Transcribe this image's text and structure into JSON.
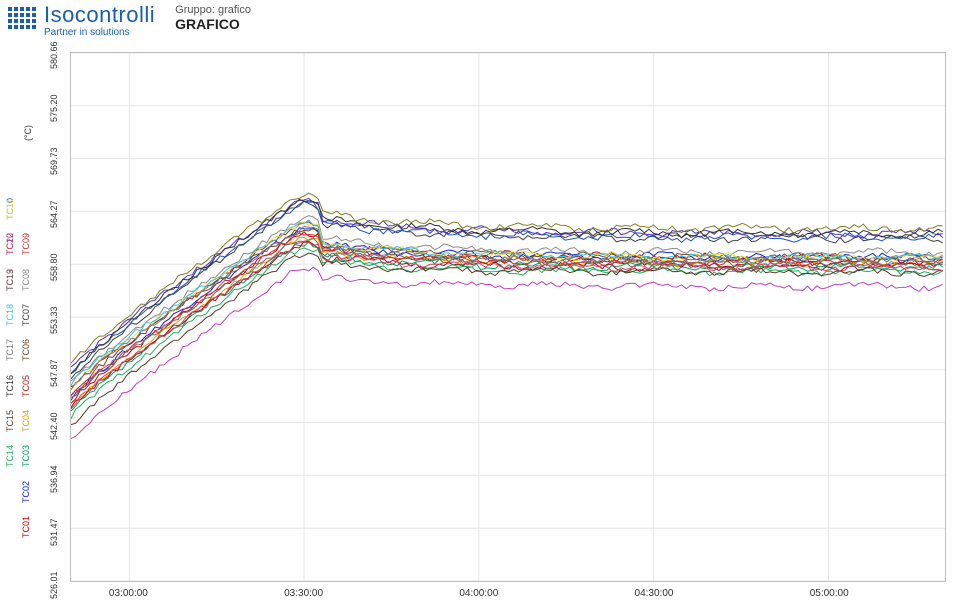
{
  "header": {
    "logo_main": "Isocontrolli",
    "logo_tagline": "Partner in solutions",
    "logo_color": "#1b5fa8",
    "group_label": "Gruppo: grafico",
    "chart_title": "GRAFICO"
  },
  "chart": {
    "type": "line",
    "background_color": "#ffffff",
    "border_color": "#bfbfbf",
    "grid_color": "#e6e6e6",
    "y_axis_unit": "(°C)",
    "y_axis_unit_color": "#333333",
    "ylim": [
      526.01,
      580.66
    ],
    "yticks": [
      526.01,
      531.47,
      536.94,
      542.4,
      547.87,
      553.33,
      558.8,
      564.27,
      569.73,
      575.2,
      580.66
    ],
    "ytick_fontsize": 9,
    "xlim_minutes": [
      170,
      320
    ],
    "xticks": [
      {
        "minutes": 180,
        "label": "03:00:00"
      },
      {
        "minutes": 210,
        "label": "03:30:00"
      },
      {
        "minutes": 240,
        "label": "04:00:00"
      },
      {
        "minutes": 270,
        "label": "04:30:00"
      },
      {
        "minutes": 300,
        "label": "05:00:00"
      }
    ],
    "xtick_fontsize": 10,
    "line_width": 1,
    "series": [
      {
        "id": "TC01",
        "color": "#cc0000",
        "start": 544.5,
        "peak": 561.5,
        "settle": 559.0,
        "legend_row": 9
      },
      {
        "id": "TC02",
        "color": "#1020d0",
        "start": 545.0,
        "peak": 562.0,
        "settle": 559.5,
        "legend_row": 8
      },
      {
        "id": "TC03",
        "color": "#00a05a",
        "start": 543.5,
        "peak": 560.5,
        "settle": 558.5,
        "legend_row": 7
      },
      {
        "id": "TC04",
        "color": "#e0a000",
        "start": 544.0,
        "peak": 561.0,
        "settle": 559.0,
        "legend_row": 6
      },
      {
        "id": "TC05",
        "color": "#b02020",
        "start": 545.5,
        "peak": 562.5,
        "settle": 559.5,
        "legend_row": 5
      },
      {
        "id": "TC06",
        "color": "#6a4a2a",
        "start": 546.0,
        "peak": 562.0,
        "settle": 559.5,
        "legend_row": 4
      },
      {
        "id": "TC07",
        "color": "#404040",
        "start": 547.0,
        "peak": 564.5,
        "settle": 561.5,
        "legend_row": 3
      },
      {
        "id": "TC08",
        "color": "#8a8a8a",
        "start": 546.5,
        "peak": 563.0,
        "settle": 560.0,
        "legend_row": 2
      },
      {
        "id": "TC09",
        "color": "#d03030",
        "start": 545.0,
        "peak": 561.5,
        "settle": 559.0,
        "legend_row": 1
      },
      {
        "id": "TC10",
        "color": "#2050c0",
        "start": 547.5,
        "peak": 564.5,
        "settle": 561.5,
        "legend_row": 0
      },
      {
        "id": "TC11",
        "color": "#e8e040",
        "start": 546.0,
        "peak": 562.5,
        "settle": 559.5,
        "legend_row": 0
      },
      {
        "id": "TC12",
        "color": "#5030d0",
        "start": 548.0,
        "peak": 565.0,
        "settle": 562.0,
        "legend_row": 1
      },
      {
        "id": "TC13",
        "color": "#a01020",
        "start": 544.0,
        "peak": 560.5,
        "settle": 558.5,
        "legend_row": 2
      },
      {
        "id": "TC14",
        "color": "#20b060",
        "start": 543.0,
        "peak": 560.0,
        "settle": 558.0,
        "legend_row": 7
      },
      {
        "id": "TC15",
        "color": "#5a3a2a",
        "start": 542.0,
        "peak": 559.5,
        "settle": 558.0,
        "legend_row": 6
      },
      {
        "id": "TC16",
        "color": "#303030",
        "start": 547.5,
        "peak": 565.0,
        "settle": 562.0,
        "legend_row": 5
      },
      {
        "id": "TC17",
        "color": "#787878",
        "start": 546.0,
        "peak": 562.0,
        "settle": 559.0,
        "legend_row": 4
      },
      {
        "id": "TC18",
        "color": "#40c0e0",
        "start": 546.5,
        "peak": 562.5,
        "settle": 559.5,
        "legend_row": 3
      },
      {
        "id": "TC19",
        "color": "#6a6a6a",
        "start": 545.0,
        "peak": 561.0,
        "settle": 559.0,
        "legend_row": 2
      },
      {
        "id": "TC20",
        "color": "#d04060",
        "start": 544.0,
        "peak": 560.5,
        "settle": 558.5,
        "legend_row": 1
      },
      {
        "id": "PURPLE",
        "color": "#c040c0",
        "start": 540.5,
        "peak": 558.0,
        "settle": 556.5,
        "legend_row": -1
      },
      {
        "id": "OLIVE",
        "color": "#808020",
        "start": 548.5,
        "peak": 565.5,
        "settle": 562.5,
        "legend_row": -1
      }
    ],
    "series_label_fontsize": 9,
    "legend_columns": 2,
    "noise_amplitude": 0.6,
    "rise_end_minutes": 208,
    "peak_minutes": 213
  }
}
